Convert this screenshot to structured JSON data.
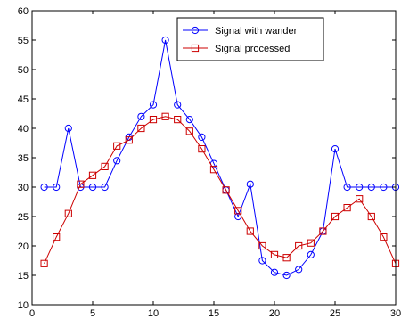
{
  "chart_data": {
    "type": "line",
    "title": "",
    "xlabel": "",
    "ylabel": "",
    "xlim": [
      0,
      30
    ],
    "ylim": [
      10,
      60
    ],
    "xticks": [
      0,
      5,
      10,
      15,
      20,
      25,
      30
    ],
    "yticks": [
      10,
      15,
      20,
      25,
      30,
      35,
      40,
      45,
      50,
      55,
      60
    ],
    "grid": false,
    "legend_position": "top-center",
    "series": [
      {
        "name": "Signal with wander",
        "color": "#0000ff",
        "marker": "circle",
        "x": [
          1,
          2,
          3,
          4,
          5,
          6,
          7,
          8,
          9,
          10,
          11,
          12,
          13,
          14,
          15,
          16,
          17,
          18,
          19,
          20,
          21,
          22,
          23,
          24,
          25,
          26,
          27,
          28,
          29,
          30
        ],
        "y": [
          30,
          30,
          40,
          30,
          30,
          30,
          34.5,
          38.5,
          42,
          44,
          55,
          44,
          41.5,
          38.5,
          34,
          29.5,
          25,
          30.5,
          17.5,
          15.5,
          15,
          16,
          18.5,
          22.5,
          36.5,
          30,
          30,
          30,
          30,
          30
        ]
      },
      {
        "name": "Signal processed",
        "color": "#cc0000",
        "marker": "square",
        "x": [
          1,
          2,
          3,
          4,
          5,
          6,
          7,
          8,
          9,
          10,
          11,
          12,
          13,
          14,
          15,
          16,
          17,
          18,
          19,
          20,
          21,
          22,
          23,
          24,
          25,
          26,
          27,
          28,
          29,
          30
        ],
        "y": [
          17,
          21.5,
          25.5,
          30.5,
          32,
          33.5,
          37,
          38,
          40,
          41.5,
          42,
          41.5,
          39.5,
          36.5,
          33,
          29.5,
          26,
          22.5,
          20,
          18.5,
          18,
          20,
          20.5,
          22.5,
          25,
          26.5,
          28,
          25,
          21.5,
          17
        ]
      }
    ]
  }
}
